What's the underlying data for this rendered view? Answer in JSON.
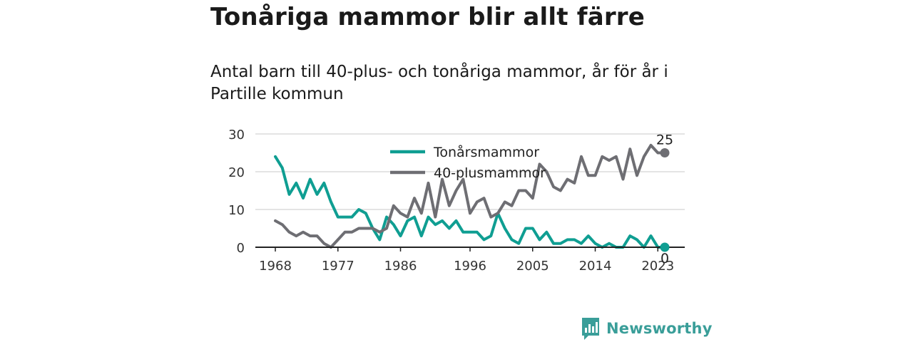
{
  "header": {
    "title": "Tonåriga mammor blir allt färre",
    "subtitle": "Antal barn till 40-plus- och tonåriga mammor, år för år i Partille kommun"
  },
  "brand": {
    "name": "Newsworthy",
    "icon": "newsworthy-logo-icon"
  },
  "chart_data": {
    "type": "line",
    "title": "Tonåriga mammor blir allt färre",
    "subtitle": "Antal barn till 40-plus- och tonåriga mammor, år för år i Partille kommun",
    "xlabel": "",
    "ylabel": "",
    "xlim": [
      1968,
      2024
    ],
    "ylim": [
      0,
      30
    ],
    "x_ticks": [
      1968,
      1977,
      1986,
      1996,
      2005,
      2014,
      2023
    ],
    "y_ticks": [
      0,
      10,
      20,
      30
    ],
    "grid": true,
    "legend": "top-center",
    "x": [
      1968,
      1969,
      1970,
      1971,
      1972,
      1973,
      1974,
      1975,
      1976,
      1977,
      1978,
      1979,
      1980,
      1981,
      1982,
      1983,
      1984,
      1985,
      1986,
      1987,
      1988,
      1989,
      1990,
      1991,
      1992,
      1993,
      1994,
      1995,
      1996,
      1997,
      1998,
      1999,
      2000,
      2001,
      2002,
      2003,
      2004,
      2005,
      2006,
      2007,
      2008,
      2009,
      2010,
      2011,
      2012,
      2013,
      2014,
      2015,
      2016,
      2017,
      2018,
      2019,
      2020,
      2021,
      2022,
      2023,
      2024
    ],
    "series": [
      {
        "name": "Tonårsmammor",
        "color": "#0f9e92",
        "values": [
          24,
          21,
          14,
          17,
          13,
          18,
          14,
          17,
          12,
          8,
          8,
          8,
          10,
          9,
          5,
          2,
          8,
          6,
          3,
          7,
          8,
          3,
          8,
          6,
          7,
          5,
          7,
          4,
          4,
          4,
          2,
          3,
          9,
          5,
          2,
          1,
          5,
          5,
          2,
          4,
          1,
          1,
          2,
          2,
          1,
          3,
          1,
          0,
          1,
          0,
          0,
          3,
          2,
          0,
          3,
          0,
          0
        ]
      },
      {
        "name": "40-plusmammor",
        "color": "#6e6e73",
        "values": [
          7,
          6,
          4,
          3,
          4,
          3,
          3,
          1,
          0,
          2,
          4,
          4,
          5,
          5,
          5,
          4,
          5,
          11,
          9,
          8,
          13,
          9,
          17,
          8,
          18,
          11,
          15,
          18,
          9,
          12,
          13,
          8,
          9,
          12,
          11,
          15,
          15,
          13,
          22,
          20,
          16,
          15,
          18,
          17,
          24,
          19,
          19,
          24,
          23,
          24,
          18,
          26,
          19,
          24,
          27,
          25,
          25
        ]
      }
    ],
    "end_labels": [
      {
        "series": "40-plusmammor",
        "x": 2024,
        "value": 25,
        "text": "25"
      },
      {
        "series": "Tonårsmammor",
        "x": 2024,
        "value": 0,
        "text": "0"
      }
    ]
  }
}
